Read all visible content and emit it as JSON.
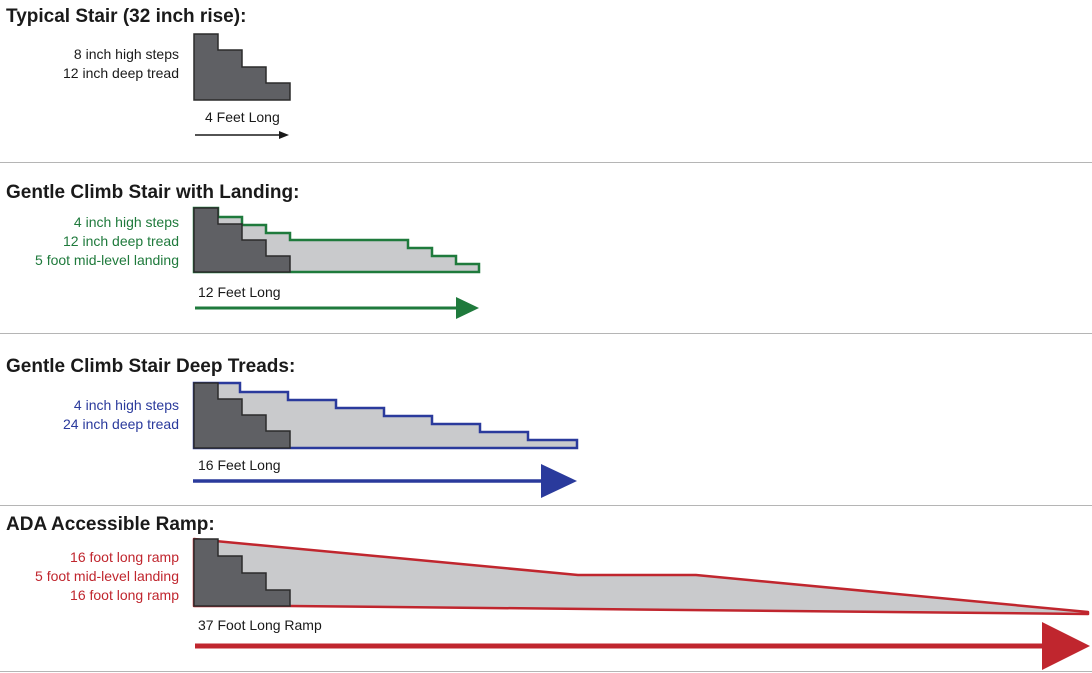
{
  "sections": [
    {
      "title": "Typical Stair (32 inch rise):",
      "notes": [
        "8 inch high steps",
        "12 inch deep tread"
      ],
      "length_label": "4 Feet Long",
      "color": "#1a1a1a"
    },
    {
      "title": "Gentle Climb Stair with Landing:",
      "notes": [
        "4 inch high steps",
        "12 inch deep tread",
        "5 foot mid-level landing"
      ],
      "length_label": "12 Feet Long",
      "color": "#1f7a3c"
    },
    {
      "title": "Gentle Climb Stair Deep Treads:",
      "notes": [
        "4 inch high steps",
        "24 inch deep tread"
      ],
      "length_label": "16 Feet Long",
      "color": "#2a3a9c"
    },
    {
      "title": "ADA Accessible Ramp:",
      "notes": [
        "16 foot long ramp",
        "5 foot mid-level landing",
        "16 foot long ramp"
      ],
      "length_label": "37 Foot Long Ramp",
      "color": "#c0262e"
    }
  ],
  "colors": {
    "stair_fill": "#5f6064",
    "profile_fill": "#c9cacc",
    "divider": "#b5b5b5"
  }
}
